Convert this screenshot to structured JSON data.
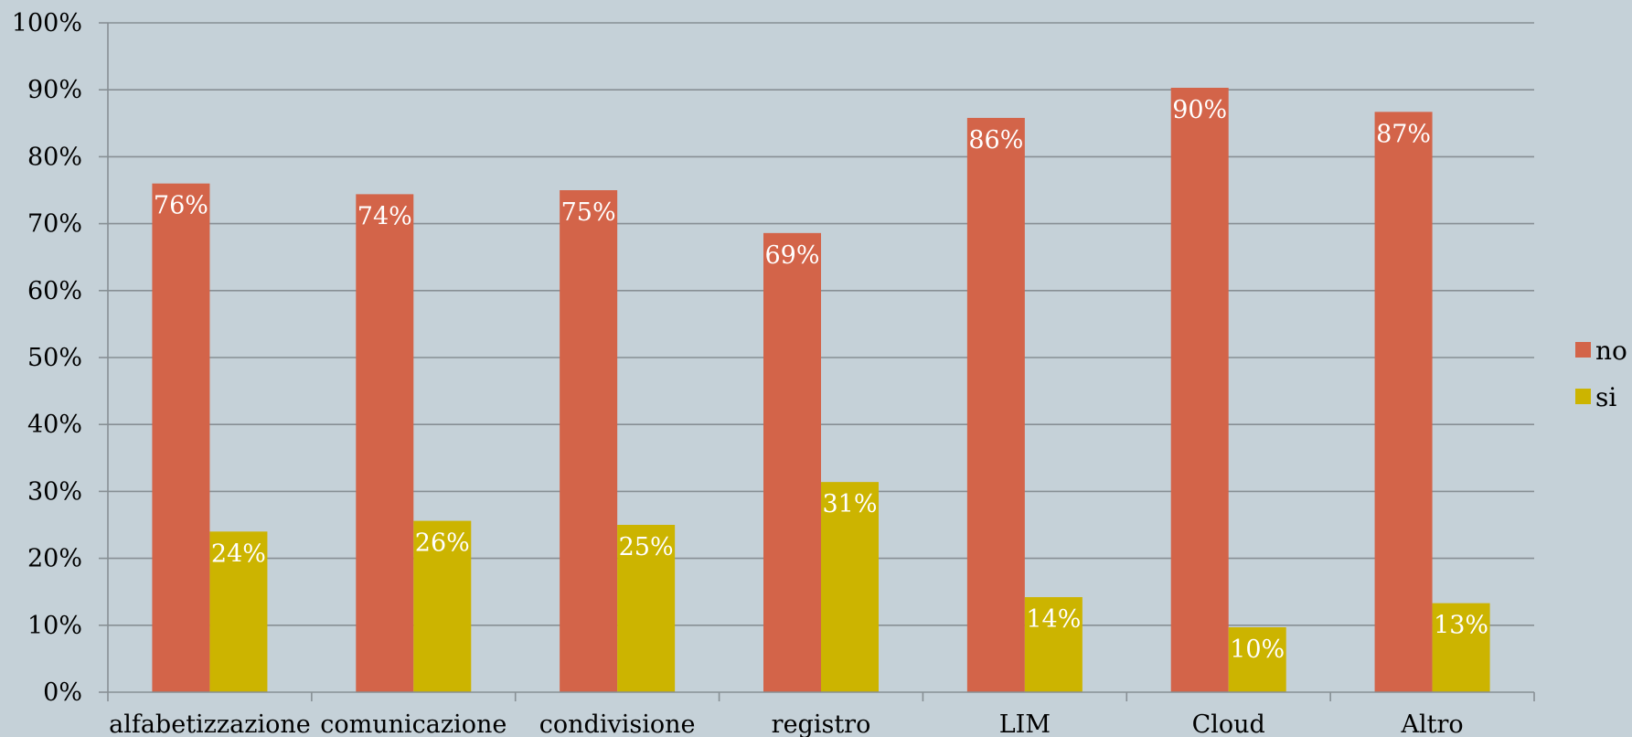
{
  "chart_data": {
    "type": "bar",
    "categories": [
      "alfabetizzazione",
      "comunicazione",
      "condivisione",
      "registro",
      "LIM",
      "Cloud",
      "Altro"
    ],
    "series": [
      {
        "name": "no",
        "color": "#d36449",
        "values": [
          0.76,
          0.744,
          0.75,
          0.686,
          0.858,
          0.903,
          0.867
        ],
        "labels": [
          "76%",
          "74%",
          "75%",
          "69%",
          "86%",
          "90%",
          "87%"
        ]
      },
      {
        "name": "si",
        "color": "#ccb400",
        "values": [
          0.24,
          0.256,
          0.25,
          0.314,
          0.142,
          0.097,
          0.133
        ],
        "labels": [
          "24%",
          "26%",
          "25%",
          "31%",
          "14%",
          "10%",
          "13%"
        ]
      }
    ],
    "yticks": [
      "0%",
      "10%",
      "20%",
      "30%",
      "40%",
      "50%",
      "60%",
      "70%",
      "80%",
      "90%",
      "100%"
    ],
    "ylim": [
      0,
      1
    ],
    "grid": true,
    "legend_position": "right",
    "title": "",
    "xlabel": "",
    "ylabel": ""
  }
}
